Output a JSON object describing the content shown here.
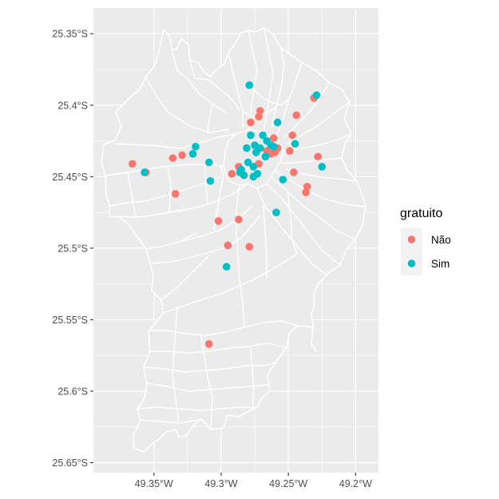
{
  "chart_data": {
    "type": "scatter",
    "title": "",
    "xlabel": "",
    "ylabel": "",
    "xlim": [
      -49.395,
      -49.183
    ],
    "ylim": [
      -25.657,
      -25.332
    ],
    "x_ticks": [
      {
        "value": -49.35,
        "label": "49.35°W"
      },
      {
        "value": -49.3,
        "label": "49.3°W"
      },
      {
        "value": -49.25,
        "label": "49.25°W"
      },
      {
        "value": -49.2,
        "label": "49.2°W"
      }
    ],
    "y_ticks": [
      {
        "value": -25.35,
        "label": "25.35°S"
      },
      {
        "value": -25.4,
        "label": "25.4°S"
      },
      {
        "value": -25.45,
        "label": "25.45°S"
      },
      {
        "value": -25.5,
        "label": "25.5°S"
      },
      {
        "value": -25.55,
        "label": "25.55°S"
      },
      {
        "value": -25.6,
        "label": "25.6°S"
      },
      {
        "value": -25.65,
        "label": "25.65°S"
      }
    ],
    "grid": true,
    "legend": {
      "title": "gratuito",
      "position": "right"
    },
    "series": [
      {
        "name": "Não",
        "color": "#F8766D",
        "points": [
          [
            -49.366,
            -25.441
          ],
          [
            -49.356,
            -25.447
          ],
          [
            -49.336,
            -25.437
          ],
          [
            -49.329,
            -25.435
          ],
          [
            -49.334,
            -25.462
          ],
          [
            -49.302,
            -25.481
          ],
          [
            -49.287,
            -25.48
          ],
          [
            -49.295,
            -25.498
          ],
          [
            -49.279,
            -25.499
          ],
          [
            -49.309,
            -25.567
          ],
          [
            -49.292,
            -25.448
          ],
          [
            -49.287,
            -25.443
          ],
          [
            -49.278,
            -25.412
          ],
          [
            -49.272,
            -25.408
          ],
          [
            -49.271,
            -25.404
          ],
          [
            -49.263,
            -25.434
          ],
          [
            -49.266,
            -25.432
          ],
          [
            -49.26,
            -25.433
          ],
          [
            -49.272,
            -25.441
          ],
          [
            -49.261,
            -25.423
          ],
          [
            -49.258,
            -25.43
          ],
          [
            -49.249,
            -25.432
          ],
          [
            -49.247,
            -25.421
          ],
          [
            -49.244,
            -25.407
          ],
          [
            -49.246,
            -25.447
          ],
          [
            -49.231,
            -25.395
          ],
          [
            -49.228,
            -25.436
          ],
          [
            -49.236,
            -25.457
          ],
          [
            -49.237,
            -25.461
          ]
        ]
      },
      {
        "name": "Sim",
        "color": "#00BFC4",
        "points": [
          [
            -49.357,
            -25.447
          ],
          [
            -49.319,
            -25.429
          ],
          [
            -49.321,
            -25.434
          ],
          [
            -49.309,
            -25.44
          ],
          [
            -49.308,
            -25.453
          ],
          [
            -49.296,
            -25.513
          ],
          [
            -49.279,
            -25.386
          ],
          [
            -49.285,
            -25.445
          ],
          [
            -49.286,
            -25.447
          ],
          [
            -49.28,
            -25.44
          ],
          [
            -49.276,
            -25.443
          ],
          [
            -49.281,
            -25.43
          ],
          [
            -49.278,
            -25.421
          ],
          [
            -49.269,
            -25.421
          ],
          [
            -49.275,
            -25.428
          ],
          [
            -49.271,
            -25.43
          ],
          [
            -49.274,
            -25.433
          ],
          [
            -49.267,
            -25.436
          ],
          [
            -49.263,
            -25.428
          ],
          [
            -49.266,
            -25.425
          ],
          [
            -49.261,
            -25.429
          ],
          [
            -49.273,
            -25.448
          ],
          [
            -49.276,
            -25.45
          ],
          [
            -49.283,
            -25.449
          ],
          [
            -49.254,
            -25.452
          ],
          [
            -49.259,
            -25.475
          ],
          [
            -49.258,
            -25.412
          ],
          [
            -49.245,
            -25.427
          ],
          [
            -49.229,
            -25.393
          ],
          [
            -49.225,
            -25.443
          ]
        ]
      }
    ]
  }
}
